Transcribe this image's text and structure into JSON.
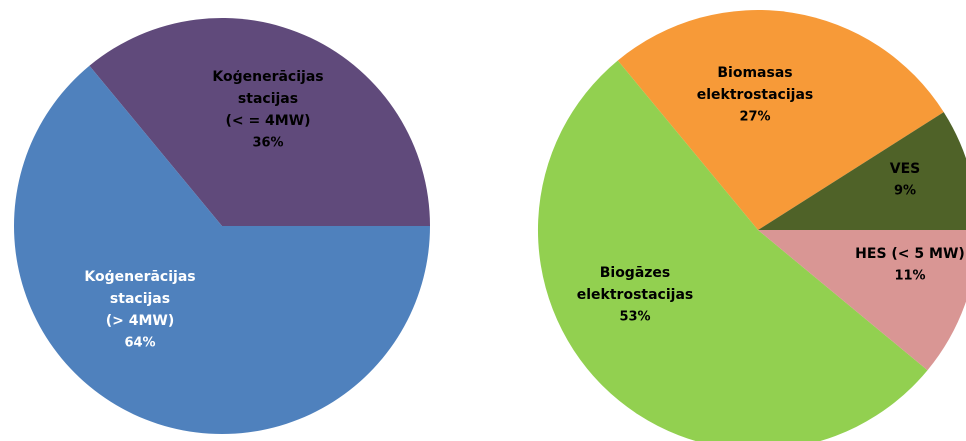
{
  "chart_data": [
    {
      "type": "pie",
      "title": "",
      "slices": [
        {
          "name": "Koģenerācijas stacijas (< = 4MW)",
          "label_lines": [
            "Koģenerācijas",
            "stacijas",
            "(< =  4MW)",
            "36%"
          ],
          "value": 36,
          "color": "#604a7b",
          "label_color": "#000000"
        },
        {
          "name": "Koģenerācijas stacijas (> 4MW)",
          "label_lines": [
            "Koģenerācijas",
            "stacijas",
            "(> 4MW)",
            "64%"
          ],
          "value": 64,
          "color": "#4f81bd",
          "label_color": "#ffffff"
        }
      ],
      "start_angle_deg": 0,
      "direction": "counterclockwise",
      "legend": "none"
    },
    {
      "type": "pie",
      "title": "",
      "slices": [
        {
          "name": "Biomasas elektrostacijas",
          "label_lines": [
            "Biomasas",
            "elektrostacijas",
            "27%"
          ],
          "value": 27,
          "color": "#f79a38",
          "label_color": "#000000"
        },
        {
          "name": "Biogāzes elektrostacijas",
          "label_lines": [
            "Biogāzes",
            "elektrostacijas",
            "53%"
          ],
          "value": 53,
          "color": "#92d050",
          "label_color": "#000000"
        },
        {
          "name": "HES (< 5 MW)",
          "label_lines": [
            "HES (< 5 MW)",
            "11%"
          ],
          "value": 11,
          "color": "#d99694",
          "label_color": "#000000"
        },
        {
          "name": "VES",
          "label_lines": [
            "VES",
            "9%"
          ],
          "value": 9,
          "color": "#4f6228",
          "label_color": "#000000"
        }
      ],
      "start_angle_deg": 32.4,
      "direction": "counterclockwise",
      "legend": "none"
    }
  ]
}
